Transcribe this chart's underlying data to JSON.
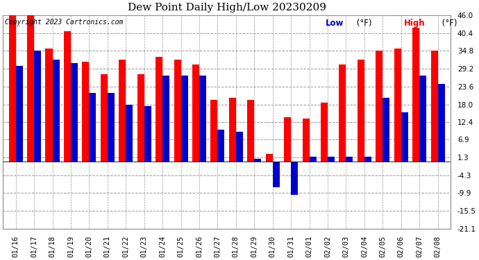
{
  "title": "Dew Point Daily High/Low 20230209",
  "copyright": "Copyright 2023 Cartronics.com",
  "dates": [
    "01/16",
    "01/17",
    "01/18",
    "01/19",
    "01/20",
    "01/21",
    "01/22",
    "01/23",
    "01/24",
    "01/25",
    "01/26",
    "01/27",
    "01/28",
    "01/29",
    "01/30",
    "01/31",
    "02/01",
    "02/02",
    "02/03",
    "02/04",
    "02/05",
    "02/06",
    "02/07",
    "02/08"
  ],
  "high": [
    46.0,
    46.0,
    35.5,
    41.0,
    31.5,
    27.5,
    32.0,
    27.5,
    33.0,
    32.0,
    30.5,
    19.5,
    20.0,
    19.5,
    2.5,
    14.0,
    13.5,
    18.5,
    30.5,
    32.0,
    35.0,
    35.5,
    42.0,
    35.0
  ],
  "low": [
    30.0,
    35.0,
    32.0,
    31.0,
    21.5,
    21.5,
    18.0,
    17.5,
    27.0,
    27.0,
    27.0,
    10.0,
    9.5,
    1.0,
    -8.0,
    -10.5,
    1.5,
    1.5,
    1.5,
    1.5,
    20.0,
    15.5,
    27.0,
    24.5
  ],
  "ylim": [
    -21.1,
    46.0
  ],
  "yticks": [
    46.0,
    40.4,
    34.8,
    29.2,
    23.6,
    18.0,
    12.4,
    6.9,
    1.3,
    -4.3,
    -9.9,
    -15.5,
    -21.1
  ],
  "bar_width": 0.38,
  "high_color": "#ff0000",
  "low_color": "#0000cc",
  "bg_color": "#ffffff",
  "grid_color": "#999999",
  "title_fontsize": 11,
  "tick_fontsize": 7.5,
  "legend_fontsize": 8.5
}
